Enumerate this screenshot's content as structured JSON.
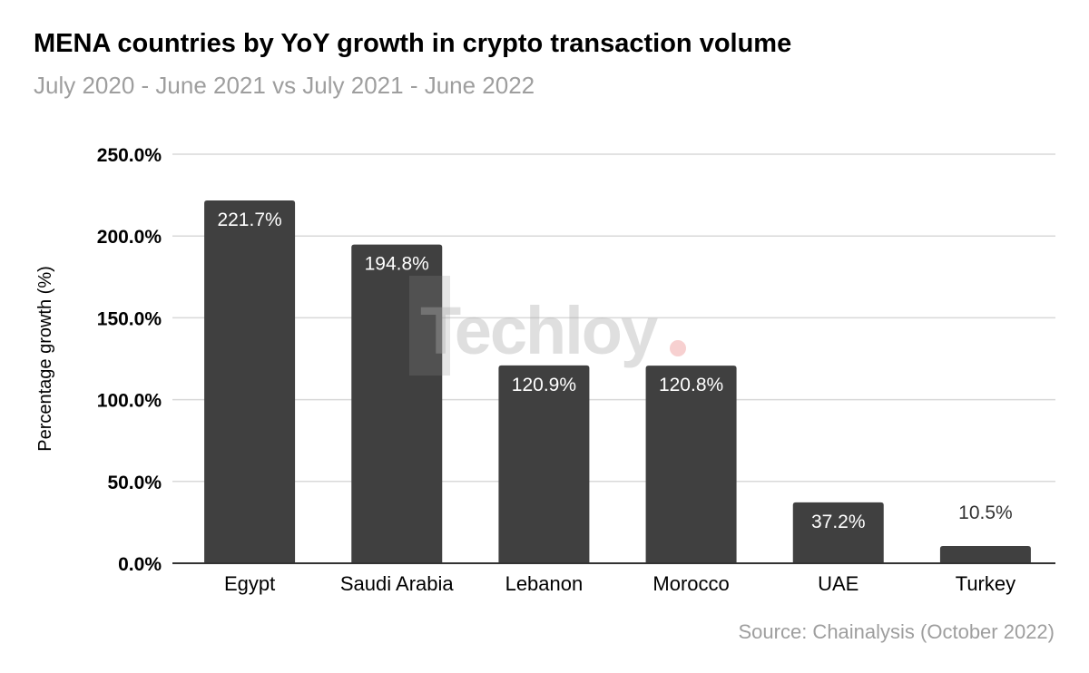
{
  "chart_data": {
    "type": "bar",
    "title": "MENA countries by YoY growth in crypto transaction volume",
    "subtitle": "July 2020 - June 2021 vs July 2021 - June 2022",
    "source": "Source: Chainalysis (October 2022)",
    "watermark": "Techloy",
    "xlabel": "",
    "ylabel": "Percentage growth (%)",
    "ylim": [
      0,
      250
    ],
    "yticks": [
      0,
      50,
      100,
      150,
      200,
      250
    ],
    "ytick_labels": [
      "0.0%",
      "50.0%",
      "100.0%",
      "150.0%",
      "200.0%",
      "250.0%"
    ],
    "categories": [
      "Egypt",
      "Saudi Arabia",
      "Lebanon",
      "Morocco",
      "UAE",
      "Turkey"
    ],
    "values": [
      221.7,
      194.8,
      120.9,
      120.8,
      37.2,
      10.5
    ],
    "data_labels": [
      "221.7%",
      "194.8%",
      "120.9%",
      "120.8%",
      "37.2%",
      "10.5%"
    ],
    "grid": true,
    "legend": "none",
    "colors": {
      "bar": "#404040",
      "grid": "#d9d9d9",
      "axis": "#333333"
    }
  }
}
